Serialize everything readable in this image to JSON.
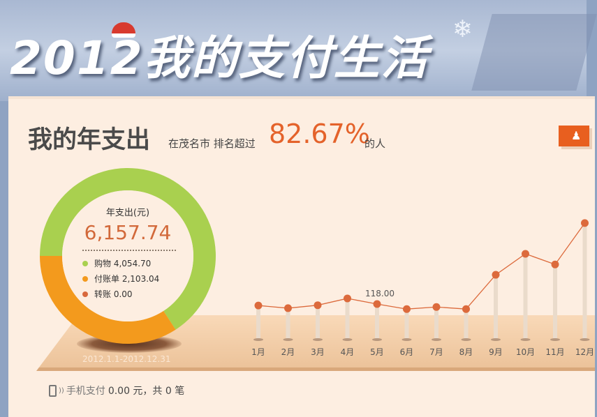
{
  "banner": {
    "title": "2012我的支付生活"
  },
  "header": {
    "title": "我的年支出",
    "rank_prefix": "在茂名市 排名超过",
    "rank_value": "82.67%",
    "rank_suffix": "的人"
  },
  "donut": {
    "label": "年支出(元)",
    "total": "6,157.74",
    "date_range": "2012.1.1-2012.12.31",
    "items": [
      {
        "name": "购物",
        "value": "4,054.70",
        "color": "#a9d04f"
      },
      {
        "name": "付账单",
        "value": "2,103.04",
        "color": "#f39a1d"
      },
      {
        "name": "转账",
        "value": "0.00",
        "color": "#d8693d"
      }
    ]
  },
  "chart_data": {
    "type": "line",
    "categories": [
      "1月",
      "2月",
      "3月",
      "4月",
      "5月",
      "6月",
      "7月",
      "8月",
      "9月",
      "10月",
      "11月",
      "12月"
    ],
    "values": [
      113,
      104,
      114,
      137,
      118,
      101,
      108,
      101,
      217,
      288,
      252,
      392
    ],
    "data_labels": [
      {
        "index": 4,
        "text": "118.00"
      }
    ],
    "color": "#dc6a3c"
  },
  "footer": {
    "label": "手机支付",
    "amount": "0.00 元，共 0 笔"
  }
}
